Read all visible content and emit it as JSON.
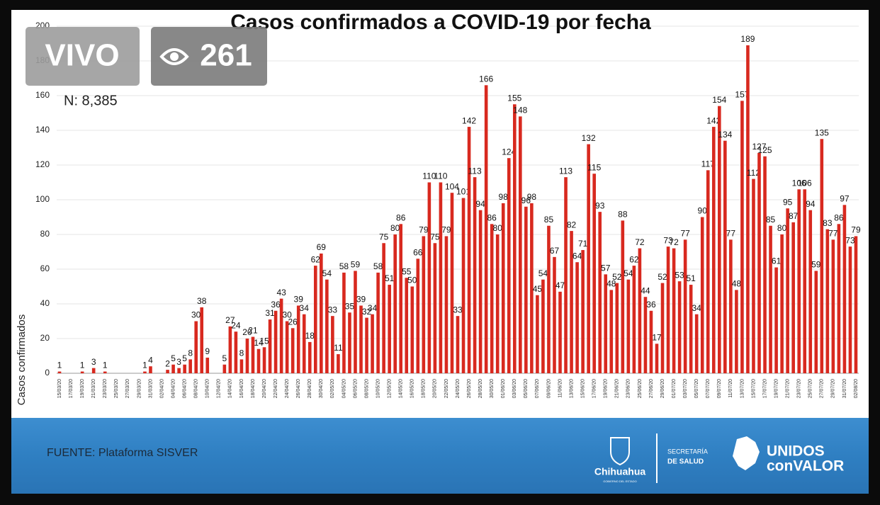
{
  "chart_data": {
    "type": "bar",
    "title": "Casos confirmados a COVID-19 por fecha",
    "annotation": "N: 8,385",
    "y_label": "Casos confirmados",
    "color": "#d8291f",
    "grid": true,
    "ylim": [
      0,
      200
    ],
    "yticks": [
      0,
      20,
      40,
      60,
      80,
      100,
      120,
      140,
      160,
      180,
      200
    ],
    "categories": [
      "15/03/20",
      null,
      "17/03/20",
      null,
      "19/03/20",
      null,
      "21/03/20",
      null,
      "23/03/20",
      null,
      "25/03/20",
      null,
      "27/03/20",
      null,
      "29/03/20",
      null,
      "31/03/20",
      null,
      "02/04/20",
      null,
      "04/04/20",
      null,
      "06/04/20",
      null,
      "08/04/20",
      null,
      "10/04/20",
      null,
      "12/04/20",
      null,
      "14/04/20",
      null,
      "16/04/20",
      null,
      "18/04/20",
      null,
      "20/04/20",
      null,
      "22/04/20",
      null,
      "24/04/20",
      null,
      "26/04/20",
      null,
      "28/04/20",
      null,
      "30/04/20",
      null,
      "02/05/20",
      null,
      "04/05/20",
      null,
      "06/05/20",
      null,
      "08/05/20",
      null,
      "10/05/20",
      null,
      "12/05/20",
      null,
      "14/05/20",
      null,
      "16/05/20",
      null,
      "18/05/20",
      null,
      "20/05/20",
      null,
      "22/05/20",
      null,
      "24/05/20",
      null,
      "26/05/20",
      null,
      "28/05/20",
      null,
      "30/05/20",
      null,
      "01/06/20",
      null,
      "03/06/20",
      null,
      "05/06/20",
      null,
      "07/06/20",
      null,
      "09/06/20",
      null,
      "11/06/20",
      null,
      "13/06/20",
      null,
      "15/06/20",
      null,
      "17/06/20",
      null,
      "19/06/20",
      null,
      "21/06/20",
      null,
      "23/06/20",
      null,
      "25/06/20",
      null,
      "27/06/20",
      null,
      "29/06/20",
      null,
      "01/07/20",
      null,
      "03/07/20",
      null,
      "05/07/20",
      null,
      "07/07/20",
      null,
      "09/07/20",
      null,
      "11/07/20",
      null,
      "13/07/20",
      null,
      "15/07/20",
      null,
      "17/07/20",
      null,
      "19/07/20",
      null,
      "21/07/20",
      null,
      "23/07/20",
      null,
      "25/07/20",
      null,
      "27/07/20",
      null,
      "29/07/20",
      null,
      "31/07/20",
      null,
      "02/08/20"
    ],
    "values": [
      1,
      0,
      0,
      0,
      1,
      0,
      3,
      0,
      1,
      0,
      0,
      0,
      0,
      0,
      0,
      1,
      4,
      0,
      0,
      2,
      5,
      3,
      5,
      8,
      30,
      38,
      9,
      0,
      0,
      5,
      27,
      24,
      8,
      20,
      21,
      14,
      15,
      31,
      36,
      43,
      30,
      26,
      39,
      34,
      18,
      62,
      69,
      54,
      33,
      11,
      58,
      35,
      59,
      39,
      32,
      34,
      58,
      75,
      51,
      80,
      86,
      55,
      50,
      66,
      79,
      110,
      75,
      110,
      79,
      104,
      33,
      101,
      142,
      113,
      94,
      166,
      86,
      80,
      98,
      124,
      155,
      148,
      96,
      98,
      45,
      54,
      85,
      67,
      47,
      113,
      82,
      64,
      71,
      132,
      115,
      93,
      57,
      48,
      52,
      88,
      54,
      62,
      72,
      44,
      36,
      17,
      52,
      73,
      72,
      53,
      77,
      51,
      34,
      90,
      117,
      142,
      154,
      134,
      77,
      48,
      157,
      189,
      112,
      127,
      125,
      85,
      61,
      80,
      95,
      87,
      106,
      106,
      94,
      59,
      135,
      83,
      77,
      86,
      97,
      73,
      79
    ]
  },
  "overlay": {
    "live": "VIVO",
    "viewers": "261"
  },
  "footer": {
    "source": "FUENTE: Plataforma SISVER",
    "state": "Chihuahua",
    "state_sub": "GOBIERNO DEL ESTADO",
    "ministry_1": "SECRETARÍA",
    "ministry_2": "DE SALUD",
    "slogan_1": "UNIDOS",
    "slogan_2": "conVALOR"
  }
}
